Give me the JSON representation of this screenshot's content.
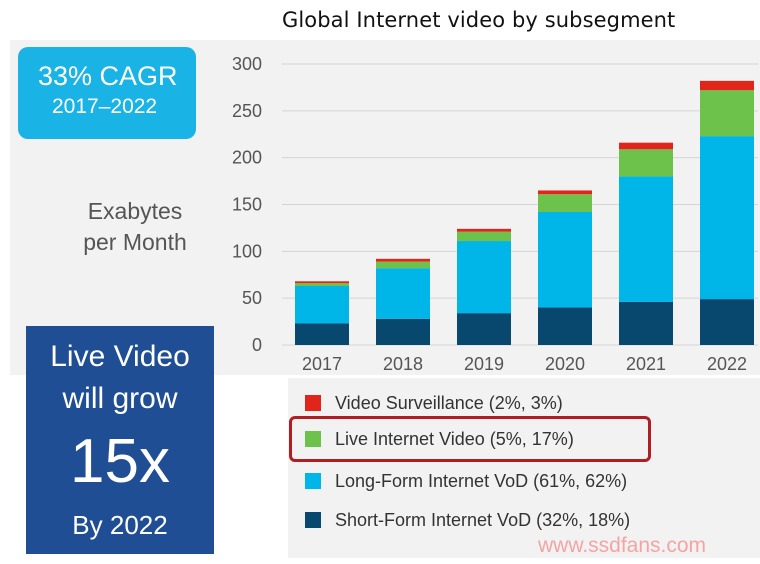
{
  "title": "Global Internet video by subsegment",
  "cagr": {
    "rate": "33% CAGR",
    "period": "2017–2022"
  },
  "ylabel_line1": "Exabytes",
  "ylabel_line2": "per Month",
  "callout": {
    "line1": "Live Video",
    "line2": "will grow",
    "multiplier": "15x",
    "line4": "By 2022"
  },
  "watermark": "www.ssdfans.com",
  "chart_data": {
    "type": "bar",
    "stacked": true,
    "categories": [
      "2017",
      "2018",
      "2019",
      "2020",
      "2021",
      "2022"
    ],
    "ylim": [
      0,
      300
    ],
    "yticks": [
      0,
      50,
      100,
      150,
      200,
      250,
      300
    ],
    "grid": true,
    "legend_position": "bottom",
    "series": [
      {
        "name": "Short-Form Internet VoD (32%, 18%)",
        "color": "#08486e",
        "values": [
          23,
          28,
          34,
          40,
          46,
          49
        ]
      },
      {
        "name": "Long-Form Internet VoD (61%, 62%)",
        "color": "#00b5e8",
        "values": [
          40,
          54,
          77,
          102,
          134,
          174
        ]
      },
      {
        "name": "Live Internet Video (5%, 17%)",
        "color": "#6cc24a",
        "values": [
          3,
          7,
          10,
          19,
          29,
          49
        ]
      },
      {
        "name": "Video Surveillance (2%, 3%)",
        "color": "#e1251b",
        "values": [
          2,
          3,
          3,
          4,
          7,
          10
        ]
      }
    ]
  }
}
